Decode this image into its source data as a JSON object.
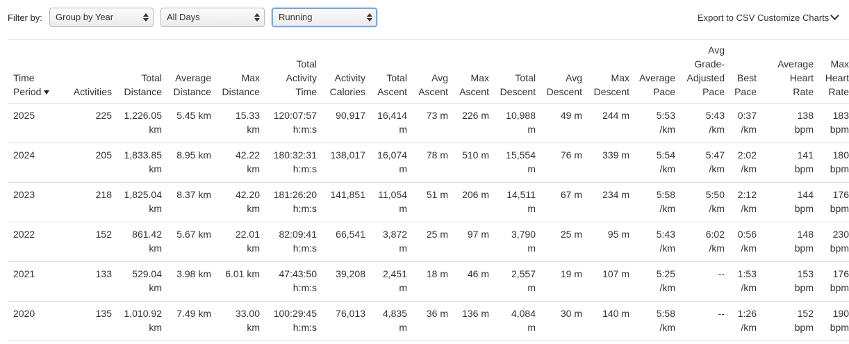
{
  "filters": {
    "label": "Filter by:",
    "group": "Group by Year",
    "days": "All Days",
    "activity": "Running"
  },
  "actions": {
    "export": "Export to CSV",
    "customize": "Customize Charts"
  },
  "table": {
    "headers": [
      [
        "Time",
        "Period"
      ],
      [
        "Activities"
      ],
      [
        "Total",
        "Distance"
      ],
      [
        "Average",
        "Distance"
      ],
      [
        "Max",
        "Distance"
      ],
      [
        "Total",
        "Activity",
        "Time"
      ],
      [
        "Activity",
        "Calories"
      ],
      [
        "Total",
        "Ascent"
      ],
      [
        "Avg",
        "Ascent"
      ],
      [
        "Max",
        "Ascent"
      ],
      [
        "Total",
        "Descent"
      ],
      [
        "Avg",
        "Descent"
      ],
      [
        "Max",
        "Descent"
      ],
      [
        "Average",
        "Pace"
      ],
      [
        "Avg",
        "Grade-",
        "Adjusted",
        "Pace"
      ],
      [
        "Best",
        "Pace"
      ],
      [
        "Average",
        "Heart",
        "Rate"
      ],
      [
        "Max",
        "Heart",
        "Rate"
      ]
    ],
    "rows": [
      [
        [
          "2025"
        ],
        [
          "225"
        ],
        [
          "1,226.05",
          "km"
        ],
        [
          "5.45 km"
        ],
        [
          "15.33",
          "km"
        ],
        [
          "120:07:57",
          "h:m:s"
        ],
        [
          "90,917"
        ],
        [
          "16,414",
          "m"
        ],
        [
          "73 m"
        ],
        [
          "226 m"
        ],
        [
          "10,988",
          "m"
        ],
        [
          "49 m"
        ],
        [
          "244 m"
        ],
        [
          "5:53",
          "/km"
        ],
        [
          "5:43",
          "/km"
        ],
        [
          "0:37",
          "/km"
        ],
        [
          "138",
          "bpm"
        ],
        [
          "183",
          "bpm"
        ]
      ],
      [
        [
          "2024"
        ],
        [
          "205"
        ],
        [
          "1,833.85",
          "km"
        ],
        [
          "8.95 km"
        ],
        [
          "42.22",
          "km"
        ],
        [
          "180:32:31",
          "h:m:s"
        ],
        [
          "138,017"
        ],
        [
          "16,074",
          "m"
        ],
        [
          "78 m"
        ],
        [
          "510 m"
        ],
        [
          "15,554",
          "m"
        ],
        [
          "76 m"
        ],
        [
          "339 m"
        ],
        [
          "5:54",
          "/km"
        ],
        [
          "5:47",
          "/km"
        ],
        [
          "2:02",
          "/km"
        ],
        [
          "141",
          "bpm"
        ],
        [
          "180",
          "bpm"
        ]
      ],
      [
        [
          "2023"
        ],
        [
          "218"
        ],
        [
          "1,825.04",
          "km"
        ],
        [
          "8.37 km"
        ],
        [
          "42.20",
          "km"
        ],
        [
          "181:26:20",
          "h:m:s"
        ],
        [
          "141,851"
        ],
        [
          "11,054",
          "m"
        ],
        [
          "51 m"
        ],
        [
          "206 m"
        ],
        [
          "14,511",
          "m"
        ],
        [
          "67 m"
        ],
        [
          "234 m"
        ],
        [
          "5:58",
          "/km"
        ],
        [
          "5:50",
          "/km"
        ],
        [
          "2:12",
          "/km"
        ],
        [
          "144",
          "bpm"
        ],
        [
          "176",
          "bpm"
        ]
      ],
      [
        [
          "2022"
        ],
        [
          "152"
        ],
        [
          "861.42",
          "km"
        ],
        [
          "5.67 km"
        ],
        [
          "22.01",
          "km"
        ],
        [
          "82:09:41",
          "h:m:s"
        ],
        [
          "66,541"
        ],
        [
          "3,872",
          "m"
        ],
        [
          "25 m"
        ],
        [
          "97 m"
        ],
        [
          "3,790",
          "m"
        ],
        [
          "25 m"
        ],
        [
          "95 m"
        ],
        [
          "5:43",
          "/km"
        ],
        [
          "6:02",
          "/km"
        ],
        [
          "0:56",
          "/km"
        ],
        [
          "148",
          "bpm"
        ],
        [
          "230",
          "bpm"
        ]
      ],
      [
        [
          "2021"
        ],
        [
          "133"
        ],
        [
          "529.04",
          "km"
        ],
        [
          "3.98 km"
        ],
        [
          "6.01 km"
        ],
        [
          "47:43:50",
          "h:m:s"
        ],
        [
          "39,208"
        ],
        [
          "2,451",
          "m"
        ],
        [
          "18 m"
        ],
        [
          "46 m"
        ],
        [
          "2,557",
          "m"
        ],
        [
          "19 m"
        ],
        [
          "107 m"
        ],
        [
          "5:25",
          "/km"
        ],
        [
          "--"
        ],
        [
          "1:53",
          "/km"
        ],
        [
          "153",
          "bpm"
        ],
        [
          "176",
          "bpm"
        ]
      ],
      [
        [
          "2020"
        ],
        [
          "135"
        ],
        [
          "1,010.92",
          "km"
        ],
        [
          "7.49 km"
        ],
        [
          "33.00",
          "km"
        ],
        [
          "100:29:45",
          "h:m:s"
        ],
        [
          "76,013"
        ],
        [
          "4,835",
          "m"
        ],
        [
          "36 m"
        ],
        [
          "136 m"
        ],
        [
          "4,084",
          "m"
        ],
        [
          "30 m"
        ],
        [
          "140 m"
        ],
        [
          "5:58",
          "/km"
        ],
        [
          "--"
        ],
        [
          "1:26",
          "/km"
        ],
        [
          "152",
          "bpm"
        ],
        [
          "190",
          "bpm"
        ]
      ]
    ]
  }
}
